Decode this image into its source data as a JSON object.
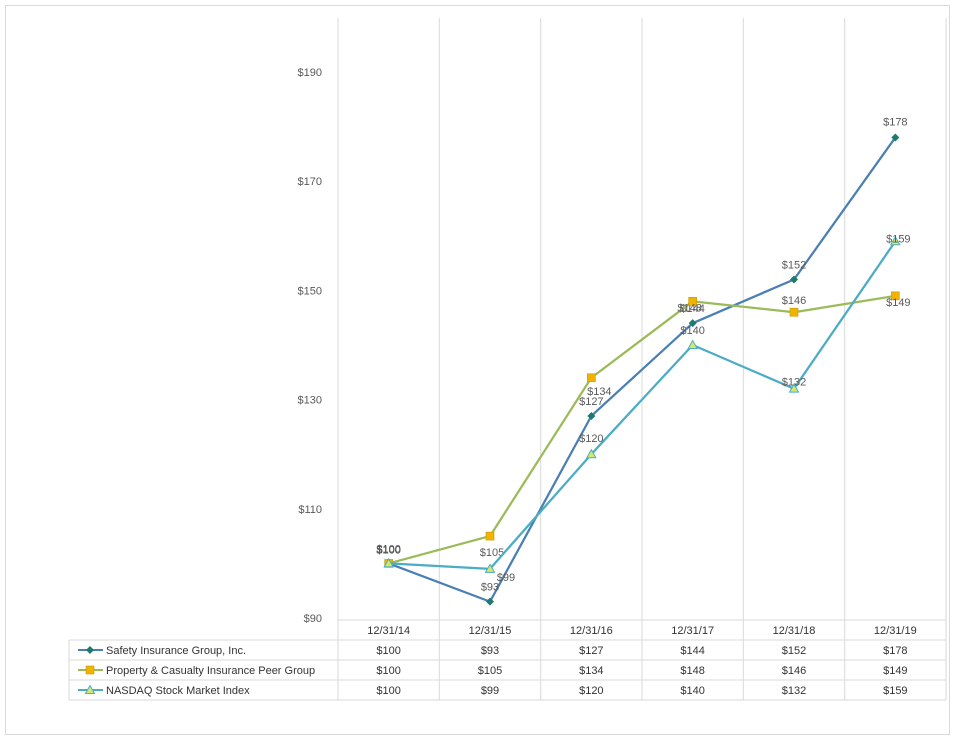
{
  "chart_data": {
    "type": "line",
    "title": "",
    "xlabel": "",
    "ylabel": "",
    "categories": [
      "12/31/14",
      "12/31/15",
      "12/31/16",
      "12/31/17",
      "12/31/18",
      "12/31/19"
    ],
    "y_tick_labels": [
      "$90",
      "$110",
      "$130",
      "$150",
      "$170",
      "$190"
    ],
    "y_ticks": [
      90,
      110,
      130,
      150,
      170,
      190
    ],
    "ylim": [
      90,
      200
    ],
    "grid": "vertical",
    "legend": "data-table-left",
    "series": [
      {
        "name": "Safety Insurance Group, Inc.",
        "values": [
          100,
          93,
          127,
          144,
          152,
          178
        ],
        "labels": [
          "$100",
          "$93",
          "$127",
          "$144",
          "$152",
          "$178"
        ],
        "color": "#4a7fb5",
        "marker": "diamond",
        "marker_color": "#1f7a6e"
      },
      {
        "name": "Property & Casualty Insurance Peer Group",
        "values": [
          100,
          105,
          134,
          148,
          146,
          149
        ],
        "labels": [
          "$100",
          "$105",
          "$134",
          "$148",
          "$146",
          "$149"
        ],
        "color": "#9bbb59",
        "marker": "square",
        "marker_color": "#f0b400"
      },
      {
        "name": "NASDAQ Stock Market Index",
        "values": [
          100,
          99,
          120,
          140,
          132,
          159
        ],
        "labels": [
          "$100",
          "$99",
          "$120",
          "$140",
          "$132",
          "$159"
        ],
        "color": "#4bacc6",
        "marker": "triangle",
        "marker_color": "#d4e86a"
      }
    ]
  }
}
